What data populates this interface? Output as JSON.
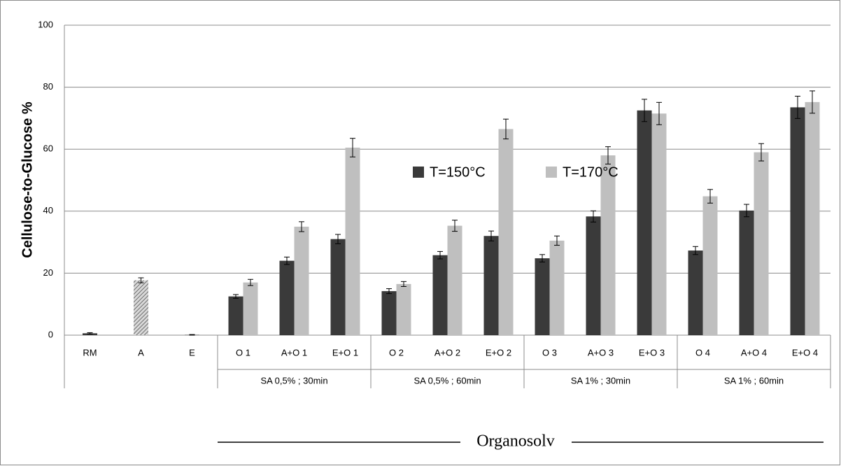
{
  "chart_data": {
    "type": "bar",
    "y_label": "Cellulose-to-Glucose %",
    "categories": [
      "RM",
      "A",
      "E",
      "O 1",
      "A+O 1",
      "E+O 1",
      "O 2",
      "A+O 2",
      "E+O 2",
      "O 3",
      "A+O 3",
      "E+O 3",
      "O 4",
      "A+O 4",
      "E+O 4"
    ],
    "groups": [
      {
        "label": "SA 0,5% ; 30min",
        "span": [
          3,
          5
        ]
      },
      {
        "label": "SA 0,5% ; 60min",
        "span": [
          6,
          8
        ]
      },
      {
        "label": "SA 1% ; 30min",
        "span": [
          9,
          11
        ]
      },
      {
        "label": "SA 1% ; 60min",
        "span": [
          12,
          14
        ]
      }
    ],
    "annotation": "Organosolv",
    "series": [
      {
        "name": "T=150°C",
        "color": "#3a3a3a",
        "values": [
          0.6,
          null,
          0.1,
          12.5,
          24,
          31,
          14.2,
          25.8,
          32,
          24.8,
          38.3,
          72.5,
          27.3,
          40.2,
          73.5
        ],
        "errors": [
          0.2,
          null,
          0.1,
          0.6,
          1.2,
          1.5,
          0.8,
          1.2,
          1.6,
          1.2,
          1.8,
          3.6,
          1.3,
          2,
          3.6
        ]
      },
      {
        "name": "T=170°C",
        "color": "#bfbfbf",
        "values": [
          null,
          null,
          null,
          17,
          35,
          60.5,
          16.5,
          35.3,
          66.5,
          30.5,
          58,
          71.5,
          44.8,
          59,
          75.2
        ],
        "errors": [
          null,
          null,
          null,
          1,
          1.6,
          3,
          0.8,
          1.8,
          3.2,
          1.5,
          2.8,
          3.6,
          2.2,
          2.8,
          3.6
        ]
      },
      {
        "color": "#8c8c8c",
        "pattern": "hatch",
        "values": [
          null,
          17.7,
          null,
          null,
          null,
          null,
          null,
          null,
          null,
          null,
          null,
          null,
          null,
          null,
          null
        ],
        "errors": [
          null,
          0.8,
          null,
          null,
          null,
          null,
          null,
          null,
          null,
          null,
          null,
          null,
          null,
          null,
          null
        ]
      }
    ],
    "ylim": [
      0,
      100
    ],
    "yticks": [
      0,
      20,
      40,
      60,
      80,
      100
    ],
    "grid": true,
    "legend": "top"
  }
}
